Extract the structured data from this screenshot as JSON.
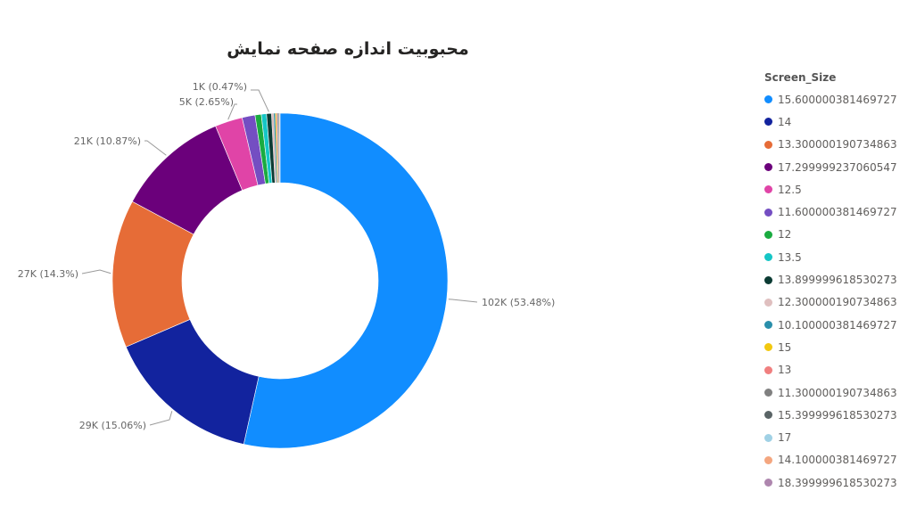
{
  "chart_data": {
    "type": "pie",
    "variant": "donut",
    "title": "محبوبیت اندازه صفحه نمایش",
    "legend_title": "Screen_Size",
    "legend_position": "right",
    "series": [
      {
        "name": "15.600000381469727",
        "value": 53.48,
        "color": "#118dff",
        "label": "102K (53.48%)"
      },
      {
        "name": "14",
        "value": 15.06,
        "color": "#12239e",
        "label": "29K (15.06%)"
      },
      {
        "name": "13.300000190734863",
        "value": 14.3,
        "color": "#e66c37",
        "label": "27K (14.3%)"
      },
      {
        "name": "17.299999237060547",
        "value": 10.87,
        "color": "#6b007b",
        "label": "21K (10.87%)"
      },
      {
        "name": "12.5",
        "value": 2.65,
        "color": "#e044a7",
        "label": "5K (2.65%)"
      },
      {
        "name": "11.600000381469727",
        "value": 1.25,
        "color": "#744ec2",
        "label": ""
      },
      {
        "name": "12",
        "value": 0.6,
        "color": "#1aab40",
        "label": ""
      },
      {
        "name": "13.5",
        "value": 0.5,
        "color": "#15c6c6",
        "label": ""
      },
      {
        "name": "13.899999618530273",
        "value": 0.47,
        "color": "#0b3b33",
        "label": "1K (0.47%)"
      },
      {
        "name": "12.300000190734863",
        "value": 0.22,
        "color": "#dfbfbf",
        "label": ""
      },
      {
        "name": "10.100000381469727",
        "value": 0.14,
        "color": "#2a8fab",
        "label": ""
      },
      {
        "name": "15",
        "value": 0.1,
        "color": "#f2c80f",
        "label": ""
      },
      {
        "name": "13",
        "value": 0.09,
        "color": "#f07f7f",
        "label": ""
      },
      {
        "name": "11.300000190734863",
        "value": 0.08,
        "color": "#808080",
        "label": ""
      },
      {
        "name": "15.399999618530273",
        "value": 0.07,
        "color": "#5a6466",
        "label": ""
      },
      {
        "name": "17",
        "value": 0.06,
        "color": "#a0d1e5",
        "label": ""
      },
      {
        "name": "14.100000381469727",
        "value": 0.04,
        "color": "#f4a67f",
        "label": ""
      },
      {
        "name": "18.399999618530273",
        "value": 0.02,
        "color": "#ae86ae",
        "label": ""
      }
    ]
  }
}
